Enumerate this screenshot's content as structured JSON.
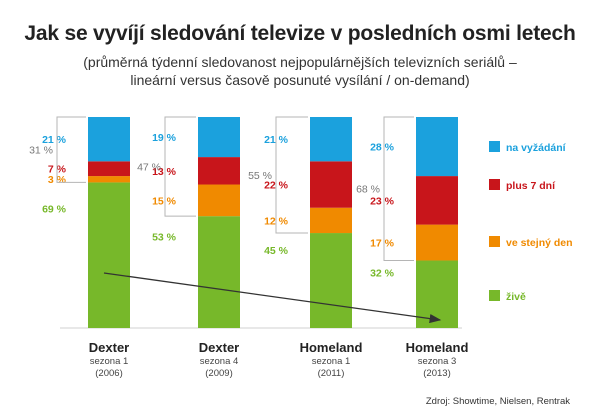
{
  "title": "Jak se vyvíjí sledování televize v posledních osmi letech",
  "subtitle": "(průměrná týdenní sledovanost nejpopulárnějších televizních seriálů – lineární versus časově posunuté vysílání / on-demand)",
  "source": "Zdroj: Showtime, Nielsen, Rentrak",
  "colors": {
    "na_vyzadani": "#1ba1dd",
    "plus_7_dni": "#c8151b",
    "ve_stejny_den": "#f08a00",
    "zive": "#77b82a",
    "bracket_label": "#777777"
  },
  "chart_data": {
    "type": "bar",
    "stacked": true,
    "categories": [
      {
        "show": "Dexter",
        "season": "sezona 1",
        "year": "(2006)"
      },
      {
        "show": "Dexter",
        "season": "sezona 4",
        "year": "(2009)"
      },
      {
        "show": "Homeland",
        "season": "sezona 1",
        "year": "(2011)"
      },
      {
        "show": "Homeland",
        "season": "sezona 3",
        "year": "(2013)"
      }
    ],
    "series": [
      {
        "name": "živě",
        "color": "#77b82a",
        "values": [
          69,
          53,
          45,
          32
        ],
        "labels": [
          "69 %",
          "53 %",
          "45 %",
          "32 %"
        ]
      },
      {
        "name": "ve stejný den",
        "color": "#f08a00",
        "values": [
          3,
          15,
          12,
          17
        ],
        "labels": [
          "3 %",
          "15 %",
          "12 %",
          "17 %"
        ]
      },
      {
        "name": "plus 7 dní",
        "color": "#c8151b",
        "values": [
          7,
          13,
          22,
          23
        ],
        "labels": [
          "7 %",
          "13 %",
          "22 %",
          "23 %"
        ]
      },
      {
        "name": "na vyžádání",
        "color": "#1ba1dd",
        "values": [
          21,
          19,
          21,
          28
        ],
        "labels": [
          "21 %",
          "19 %",
          "21 %",
          "28 %"
        ]
      }
    ],
    "non_live_totals": [
      31,
      47,
      55,
      68
    ],
    "non_live_labels": [
      "31 %",
      "47 %",
      "55 %",
      "68 %"
    ],
    "ylim": [
      0,
      100
    ],
    "legend_position": "right",
    "trend_arrow": "from first to last live-viewing segment"
  }
}
